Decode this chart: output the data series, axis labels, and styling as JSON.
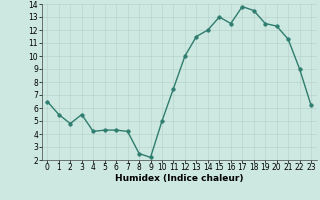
{
  "x": [
    0,
    1,
    2,
    3,
    4,
    5,
    6,
    7,
    8,
    9,
    10,
    11,
    12,
    13,
    14,
    15,
    16,
    17,
    18,
    19,
    20,
    21,
    22,
    23
  ],
  "y": [
    6.5,
    5.5,
    4.8,
    5.5,
    4.2,
    4.3,
    4.3,
    4.2,
    2.5,
    2.2,
    5.0,
    7.5,
    10.0,
    11.5,
    12.0,
    13.0,
    12.5,
    13.8,
    13.5,
    12.5,
    12.3,
    11.3,
    9.0,
    6.2
  ],
  "xlabel": "Humidex (Indice chaleur)",
  "ylim": [
    2,
    14
  ],
  "xlim": [
    -0.5,
    23.5
  ],
  "yticks": [
    2,
    3,
    4,
    5,
    6,
    7,
    8,
    9,
    10,
    11,
    12,
    13,
    14
  ],
  "xticks": [
    0,
    1,
    2,
    3,
    4,
    5,
    6,
    7,
    8,
    9,
    10,
    11,
    12,
    13,
    14,
    15,
    16,
    17,
    18,
    19,
    20,
    21,
    22,
    23
  ],
  "line_color": "#2e7d6e",
  "bg_color": "#cde8e0",
  "grid_color": "#b8d4cc",
  "marker_size": 2.5,
  "line_width": 1.0,
  "tick_fontsize": 5.5,
  "xlabel_fontsize": 6.5
}
